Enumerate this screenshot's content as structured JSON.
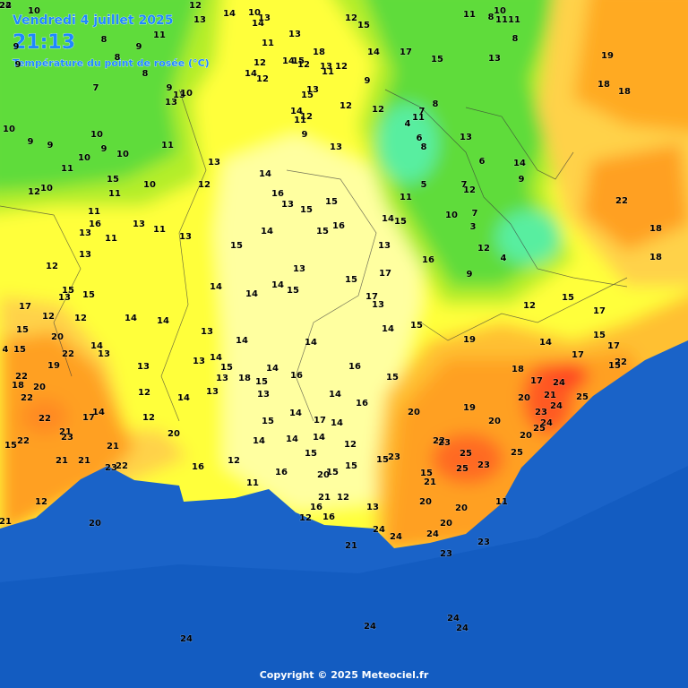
{
  "header": {
    "date": "Vendredi 4 juillet 2025",
    "time": "21:13",
    "subtitle": "Température du point de rosée (°C)"
  },
  "footer": {
    "copyright": "Copyright © 2025 Meteociel.fr"
  },
  "stations": [
    10,
    12,
    13,
    14,
    10,
    14,
    13,
    8,
    9,
    11,
    9,
    9,
    8,
    8,
    7,
    9,
    13,
    13,
    10,
    11,
    13,
    18,
    12,
    14,
    12,
    14,
    15,
    12,
    13,
    12,
    11,
    12,
    15,
    14,
    17,
    15,
    9,
    11,
    8,
    10,
    11,
    11,
    8,
    13,
    19,
    18,
    18,
    14,
    12,
    11,
    15,
    13,
    12,
    12,
    7,
    8,
    11,
    4,
    9,
    13,
    10,
    9,
    9,
    10,
    9,
    10,
    11,
    11,
    10,
    15,
    11,
    10,
    12,
    13,
    14,
    12,
    10,
    11,
    16,
    13,
    11,
    13,
    11,
    13,
    16,
    13,
    15,
    15,
    16,
    15,
    14,
    15,
    6,
    8,
    13,
    6,
    14,
    9,
    5,
    11,
    7,
    12,
    7,
    3,
    10,
    14,
    15,
    13,
    16,
    12,
    4,
    9,
    22,
    18,
    18,
    12,
    13,
    13,
    17,
    15,
    15,
    13,
    15,
    17,
    12,
    12,
    14,
    14,
    14,
    14,
    14,
    15,
    17,
    13,
    12,
    15,
    17,
    15,
    20,
    22,
    4,
    15,
    19,
    14,
    13,
    13,
    14,
    14,
    14,
    15,
    19,
    14,
    17,
    15,
    17,
    22,
    15,
    22,
    18,
    22,
    20,
    13,
    13,
    14,
    15,
    13,
    18,
    15,
    14,
    16,
    16,
    15,
    18,
    17,
    24,
    25,
    21,
    20,
    24,
    23,
    24,
    25,
    12,
    14,
    13,
    13,
    14,
    16,
    20,
    19,
    20,
    20,
    25,
    22,
    21,
    23,
    17,
    14,
    12,
    15,
    14,
    17,
    14,
    22,
    15,
    21,
    20,
    14,
    14,
    14,
    12,
    15,
    22,
    23,
    25,
    25,
    23,
    21,
    21,
    23,
    22,
    16,
    12,
    16,
    15,
    15,
    15,
    23,
    15,
    21,
    20,
    12,
    21,
    12,
    13,
    11,
    16,
    16,
    12,
    20,
    11,
    20,
    21,
    20,
    20,
    24,
    24,
    24,
    21,
    23,
    23,
    24,
    24,
    24,
    24,
    24,
    22
  ]
}
